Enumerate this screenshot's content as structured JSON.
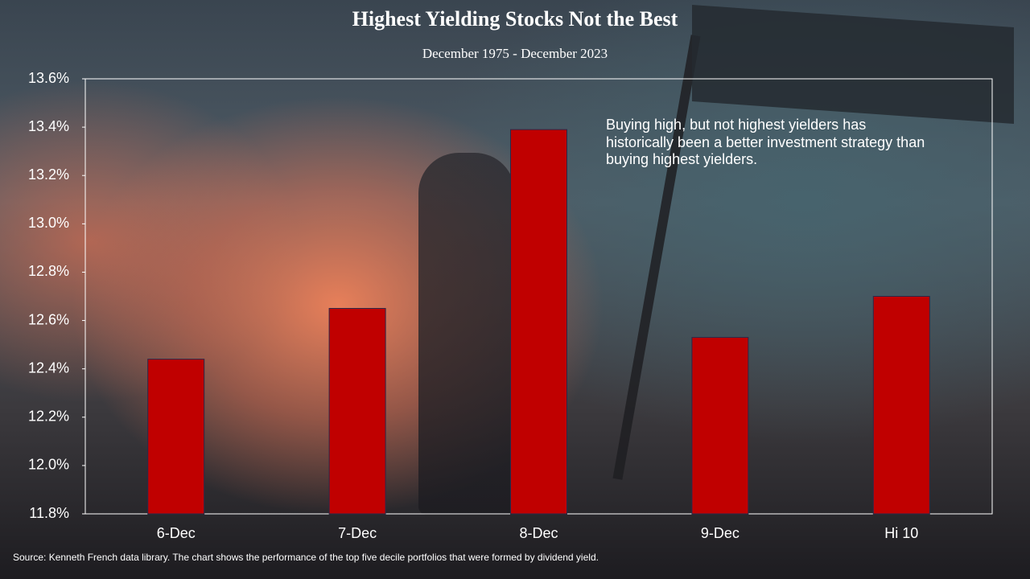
{
  "chart_data": {
    "type": "bar",
    "title": "Highest Yielding Stocks Not the Best",
    "subtitle": "December 1975 - December 2023",
    "annotation": "Buying high, but not highest yielders has historically been a better investment strategy than buying highest yielders.",
    "source": "Source: Kenneth French data library. The chart shows the performance of the top five decile portfolios that were formed by dividend yield.",
    "categories": [
      "6-Dec",
      "7-Dec",
      "8-Dec",
      "9-Dec",
      "Hi 10"
    ],
    "values": [
      12.44,
      12.65,
      13.39,
      12.53,
      12.7
    ],
    "color": "#c00000",
    "ylim": [
      11.8,
      13.6
    ],
    "yticks": [
      {
        "value": 11.8,
        "label": "11.8%"
      },
      {
        "value": 12.0,
        "label": "12.0%"
      },
      {
        "value": 12.2,
        "label": "12.2%"
      },
      {
        "value": 12.4,
        "label": "12.4%"
      },
      {
        "value": 12.6,
        "label": "12.6%"
      },
      {
        "value": 12.8,
        "label": "12.8%"
      },
      {
        "value": 13.0,
        "label": "13.0%"
      },
      {
        "value": 13.2,
        "label": "13.2%"
      },
      {
        "value": 13.4,
        "label": "13.4%"
      },
      {
        "value": 13.6,
        "label": "13.6%"
      }
    ],
    "grid": false
  }
}
